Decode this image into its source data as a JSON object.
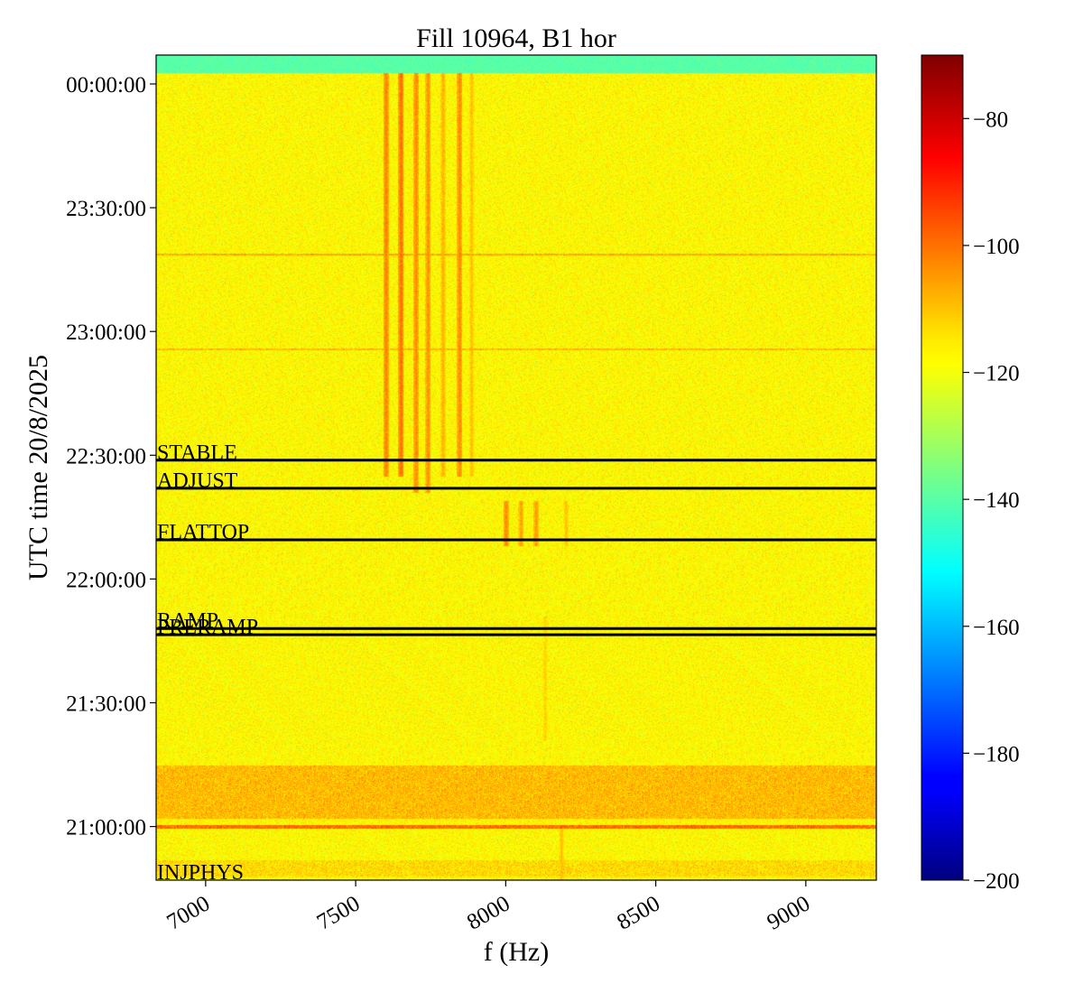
{
  "chart_data": {
    "type": "heatmap",
    "title": "Fill 10964, B1 hor",
    "xlabel": "f (Hz)",
    "ylabel": "UTC time 20/8/2025",
    "xlim": [
      6835,
      9235
    ],
    "x_ticks": [
      {
        "value": 7000,
        "label": "7000"
      },
      {
        "value": 7500,
        "label": "7500"
      },
      {
        "value": 8000,
        "label": "8000"
      },
      {
        "value": 8500,
        "label": "8500"
      },
      {
        "value": 9000,
        "label": "9000"
      }
    ],
    "ylim_minutes": [
      1247,
      1447
    ],
    "y_ticks": [
      {
        "value": 1260,
        "label": "21:00:00"
      },
      {
        "value": 1290,
        "label": "21:30:00"
      },
      {
        "value": 1320,
        "label": "22:00:00"
      },
      {
        "value": 1350,
        "label": "22:30:00"
      },
      {
        "value": 1380,
        "label": "23:00:00"
      },
      {
        "value": 1410,
        "label": "23:30:00"
      },
      {
        "value": 1440,
        "label": "00:00:00"
      }
    ],
    "beam_modes": [
      {
        "label": "INJPHYS",
        "time": 1247
      },
      {
        "label": "PRERAMP",
        "time": 1306.5
      },
      {
        "label": "RAMP",
        "time": 1308
      },
      {
        "label": "FLATTOP",
        "time": 1329.5
      },
      {
        "label": "ADJUST",
        "time": 1342
      },
      {
        "label": "STABLE",
        "time": 1348.8
      }
    ],
    "colorbar": {
      "colormap": "jet",
      "range": [
        -200,
        -70
      ],
      "ticks": [
        {
          "value": -80,
          "label": "−80"
        },
        {
          "value": -100,
          "label": "−100"
        },
        {
          "value": -120,
          "label": "−120"
        },
        {
          "value": -140,
          "label": "−140"
        },
        {
          "value": -160,
          "label": "−160"
        },
        {
          "value": -180,
          "label": "−180"
        },
        {
          "value": -200,
          "label": "−200"
        }
      ]
    },
    "background_level": -118,
    "top_band_level": -140,
    "spectral_lines": [
      {
        "f": 7600,
        "t_start": 1345,
        "t_end": 1443,
        "level": -102
      },
      {
        "f": 7650,
        "t_start": 1345,
        "t_end": 1443,
        "level": -100
      },
      {
        "f": 7700,
        "t_start": 1341,
        "t_end": 1443,
        "level": -103
      },
      {
        "f": 7740,
        "t_start": 1341,
        "t_end": 1443,
        "level": -104
      },
      {
        "f": 7790,
        "t_start": 1345,
        "t_end": 1443,
        "level": -108
      },
      {
        "f": 7845,
        "t_start": 1345,
        "t_end": 1443,
        "level": -103
      },
      {
        "f": 7885,
        "t_start": 1345,
        "t_end": 1443,
        "level": -110
      },
      {
        "f": 8000,
        "t_start": 1328,
        "t_end": 1339,
        "level": -103
      },
      {
        "f": 8050,
        "t_start": 1328,
        "t_end": 1339,
        "level": -106
      },
      {
        "f": 8100,
        "t_start": 1328,
        "t_end": 1339,
        "level": -105
      },
      {
        "f": 8200,
        "t_start": 1328,
        "t_end": 1339,
        "level": -110
      },
      {
        "f": 8130,
        "t_start": 1281,
        "t_end": 1311,
        "level": -112
      },
      {
        "f": 8185,
        "t_start": 1247,
        "t_end": 1260,
        "level": -110
      }
    ],
    "horizontal_events": [
      {
        "t_start": 1259.5,
        "t_end": 1260.5,
        "level": -100
      },
      {
        "t_start": 1262,
        "t_end": 1275,
        "level": -110
      },
      {
        "t_start": 1248,
        "t_end": 1252,
        "level": -114
      },
      {
        "t_start": 1398.5,
        "t_end": 1399,
        "level": -108
      },
      {
        "t_start": 1375.5,
        "t_end": 1376,
        "level": -110
      }
    ]
  }
}
